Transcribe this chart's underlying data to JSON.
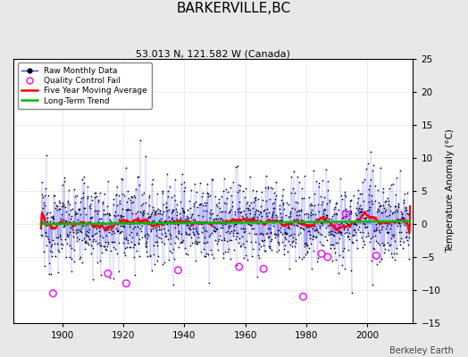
{
  "title": "BARKERVILLE,BC",
  "subtitle": "53.013 N, 121.582 W (Canada)",
  "ylabel": "Temperature Anomaly (°C)",
  "xlabel_credit": "Berkeley Earth",
  "xlim": [
    1884,
    2015
  ],
  "ylim": [
    -15,
    25
  ],
  "yticks": [
    -15,
    -10,
    -5,
    0,
    5,
    10,
    15,
    20,
    25
  ],
  "xticks": [
    1900,
    1920,
    1940,
    1960,
    1980,
    2000
  ],
  "bg_color": "#e8e8e8",
  "plot_bg_color": "#ffffff",
  "raw_line_color": "#3333ff",
  "raw_marker_color": "#000000",
  "qc_fail_color": "#ff00ff",
  "moving_avg_color": "#ff0000",
  "trend_color": "#00bb00",
  "seed": 12345,
  "years_start": 1893,
  "years_end": 2014,
  "noise_std": 3.2,
  "n_qc": 12
}
